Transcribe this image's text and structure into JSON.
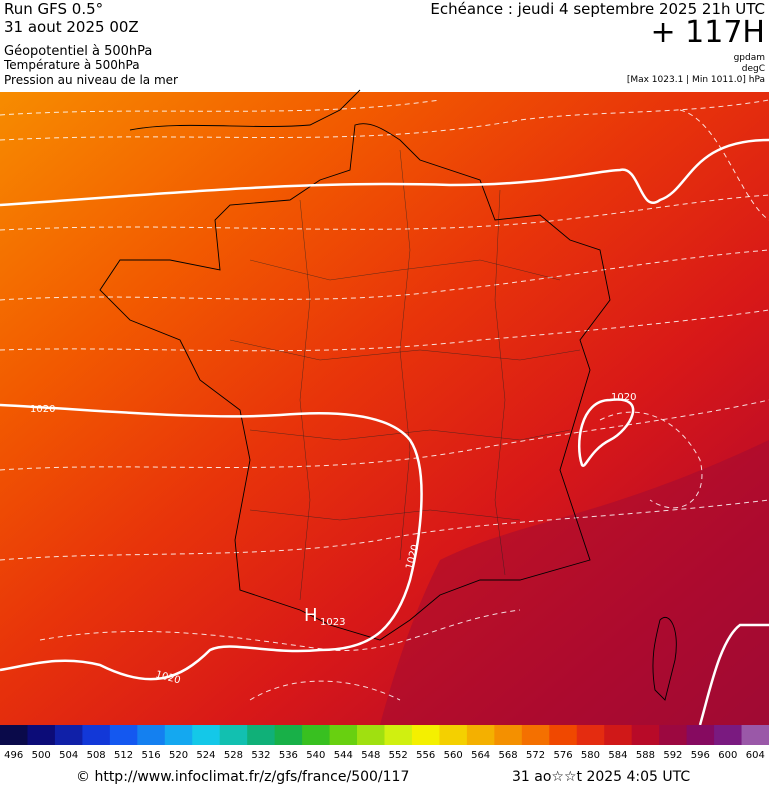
{
  "header": {
    "run": "Run GFS 0.5°",
    "run_date": "31 aout 2025 00Z",
    "field_1": "Géopotentiel à 500hPa",
    "field_2": "Température à 500hPa",
    "field_3": "Pression au niveau de la mer",
    "valid_time": "Echéance : jeudi 4 septembre 2025 21h UTC",
    "lead": "+ 117H",
    "unit_1": "gpdam",
    "unit_2": "degC",
    "pressure_range": "[Max 1023.1 | Min 1011.0] hPa"
  },
  "map": {
    "isobar_labels": [
      "1020",
      "1020",
      "1020",
      "1020"
    ],
    "high_symbol": "H",
    "high_value": "1023"
  },
  "colorbar": {
    "labels": [
      496,
      500,
      504,
      508,
      512,
      516,
      520,
      524,
      528,
      532,
      536,
      540,
      544,
      548,
      552,
      556,
      560,
      564,
      568,
      572,
      576,
      580,
      584,
      588,
      592,
      596,
      600,
      604
    ]
  },
  "footer": {
    "url": "© http://www.infoclimat.fr/z/gfs/france/500/117",
    "generated": "31 ao☆☆t 2025  4:05 UTC"
  }
}
